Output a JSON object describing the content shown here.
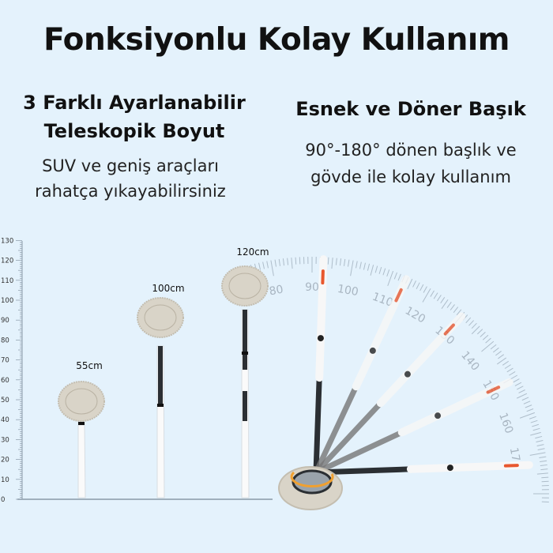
{
  "title": "Fonksiyonlu Kolay Kullanım",
  "left": {
    "heading_line1": "3 Farklı Ayarlanabilir",
    "heading_line2": "Teleskopik Boyut",
    "sub_line1": "SUV ve geniş araçları",
    "sub_line2": "rahatça yıkayabilirsiniz",
    "ruler_labels": [
      "0",
      "10",
      "20",
      "30",
      "40",
      "50",
      "60",
      "70",
      "80",
      "90",
      "100",
      "110",
      "120",
      "130"
    ],
    "sizes": [
      "55cm",
      "100cm",
      "120cm"
    ]
  },
  "right": {
    "heading": "Esnek ve Döner Başık",
    "sub_line1": "90°-180° dönen başlık ve",
    "sub_line2": "gövde ile kolay kullanım",
    "protractor_labels": [
      "80",
      "90",
      "100",
      "110",
      "120",
      "130",
      "140",
      "150",
      "160",
      "170"
    ]
  },
  "colors": {
    "background": "#e4f2fc",
    "accent": "#e8572e",
    "pole_dark": "#2b2f33",
    "pad": "#d9d4c8"
  }
}
